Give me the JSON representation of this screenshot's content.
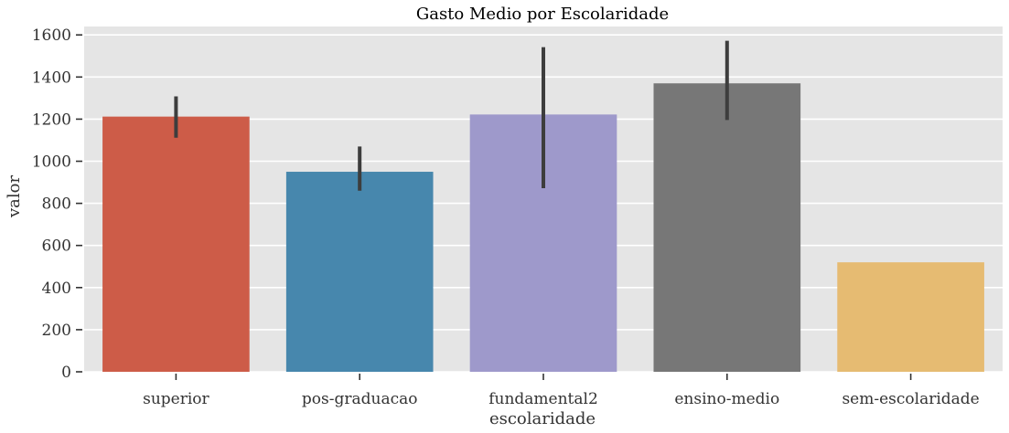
{
  "chart_data": {
    "type": "bar",
    "title": "Gasto Medio por Escolaridade",
    "xlabel": "escolaridade",
    "ylabel": "valor",
    "categories": [
      "superior",
      "pos-graduacao",
      "fundamental2",
      "ensino-medio",
      "sem-escolaridade"
    ],
    "values": [
      1212,
      950,
      1222,
      1370,
      520
    ],
    "error_low": [
      1112,
      860,
      872,
      1196,
      520
    ],
    "error_high": [
      1308,
      1070,
      1542,
      1572,
      520
    ],
    "ylim": [
      0,
      1640
    ],
    "yticks": [
      0,
      200,
      400,
      600,
      800,
      1000,
      1200,
      1400,
      1600
    ],
    "grid": true,
    "colors": [
      "#cd5c48",
      "#4787ad",
      "#9e99cb",
      "#777777",
      "#e6bb72"
    ],
    "error_bar_color": "#3d3d3d",
    "background_color": "#e5e5e5",
    "grid_color": "#ffffff"
  }
}
